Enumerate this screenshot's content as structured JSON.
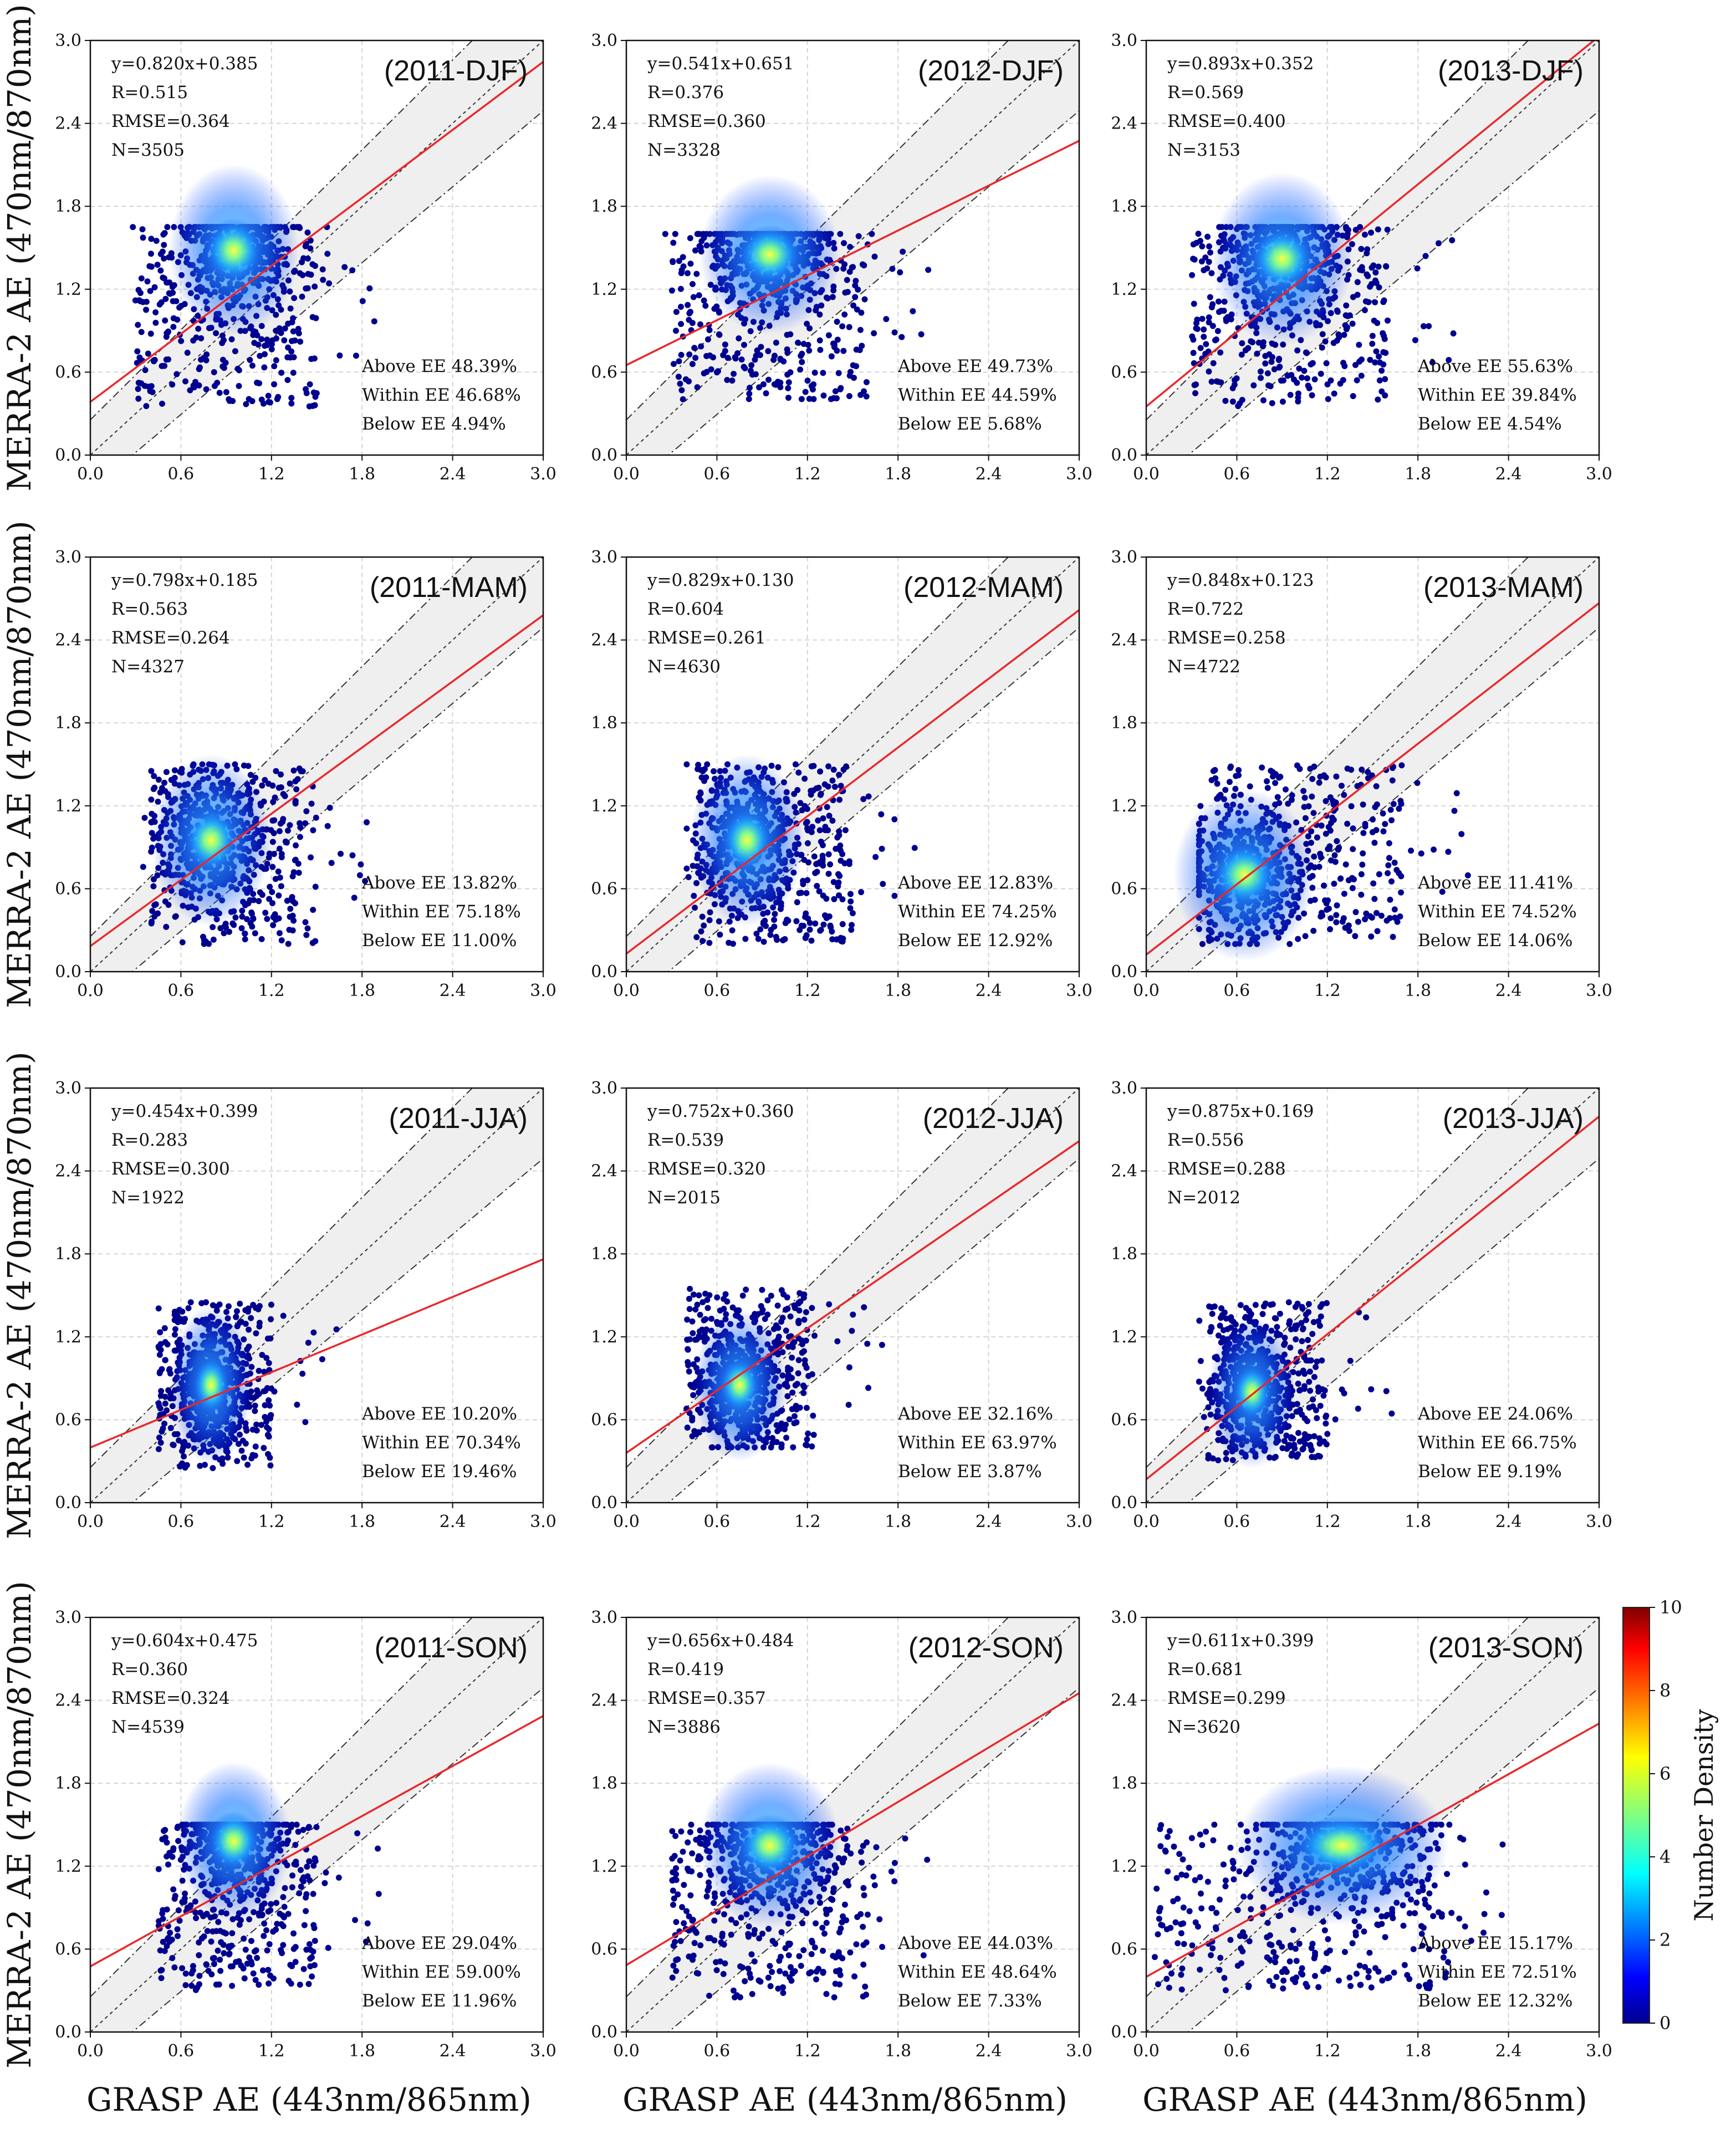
{
  "figure": {
    "ylabel": "MERRA-2 AE (470nm/870nm)",
    "xlabel": "GRASP AE (443nm/865nm)"
  },
  "colorbar": {
    "label": "Number Density",
    "ticks": [
      "0",
      "2",
      "4",
      "6",
      "8",
      "10"
    ],
    "range": [
      0,
      10
    ],
    "colors": [
      "#00008f",
      "#0000ff",
      "#0080ff",
      "#00ffff",
      "#80ff80",
      "#ffff00",
      "#ff8000",
      "#ff0000",
      "#800000"
    ]
  },
  "colors": {
    "regression_line": "#e8282c",
    "ee_band": "#efefef",
    "ee_lines": "#333333",
    "grid": "#d4d4d4",
    "points_low": "#00008f",
    "points_mid": "#1a6bff",
    "points_high": "#ffff00"
  },
  "chart_data": [
    {
      "type": "scatter",
      "title": "(2011-DJF)",
      "xlim": [
        0,
        3
      ],
      "ylim": [
        0,
        3
      ],
      "xticks": [
        "0.0",
        "0.6",
        "1.2",
        "1.8",
        "2.4",
        "3.0"
      ],
      "yticks": [
        "0.0",
        "0.6",
        "1.2",
        "1.8",
        "2.4",
        "3.0"
      ],
      "fit": {
        "slope": 0.82,
        "intercept": 0.385
      },
      "stats": [
        "y=0.820x+0.385",
        "R=0.515",
        "RMSE=0.364",
        "N=3505"
      ],
      "ee": [
        "Above EE 48.39%",
        "Within EE 46.68%",
        "Below EE 4.94%"
      ],
      "cloud": {
        "x_range": [
          0.3,
          1.5
        ],
        "y_range": [
          0.35,
          1.65
        ],
        "peak": [
          0.95,
          1.48
        ]
      }
    },
    {
      "type": "scatter",
      "title": "(2012-DJF)",
      "xlim": [
        0,
        3
      ],
      "ylim": [
        0,
        3
      ],
      "xticks": [
        "0.0",
        "0.6",
        "1.2",
        "1.8",
        "2.4",
        "3.0"
      ],
      "yticks": [
        "0.0",
        "0.6",
        "1.2",
        "1.8",
        "2.4",
        "3.0"
      ],
      "fit": {
        "slope": 0.541,
        "intercept": 0.651
      },
      "stats": [
        "y=0.541x+0.651",
        "R=0.376",
        "RMSE=0.360",
        "N=3328"
      ],
      "ee": [
        "Above EE 49.73%",
        "Within EE 44.59%",
        "Below EE 5.68%"
      ],
      "cloud": {
        "x_range": [
          0.3,
          1.6
        ],
        "y_range": [
          0.4,
          1.6
        ],
        "peak": [
          0.95,
          1.45
        ]
      }
    },
    {
      "type": "scatter",
      "title": "(2013-DJF)",
      "xlim": [
        0,
        3
      ],
      "ylim": [
        0,
        3
      ],
      "xticks": [
        "0.0",
        "0.6",
        "1.2",
        "1.8",
        "2.4",
        "3.0"
      ],
      "yticks": [
        "0.0",
        "0.6",
        "1.2",
        "1.8",
        "2.4",
        "3.0"
      ],
      "fit": {
        "slope": 0.893,
        "intercept": 0.352
      },
      "stats": [
        "y=0.893x+0.352",
        "R=0.569",
        "RMSE=0.400",
        "N=3153"
      ],
      "ee": [
        "Above EE 55.63%",
        "Within EE 39.84%",
        "Below EE 4.54%"
      ],
      "cloud": {
        "x_range": [
          0.3,
          1.6
        ],
        "y_range": [
          0.35,
          1.65
        ],
        "peak": [
          0.9,
          1.42
        ]
      }
    },
    {
      "type": "scatter",
      "title": "(2011-MAM)",
      "xlim": [
        0,
        3
      ],
      "ylim": [
        0,
        3
      ],
      "xticks": [
        "0.0",
        "0.6",
        "1.2",
        "1.8",
        "2.4",
        "3.0"
      ],
      "yticks": [
        "0.0",
        "0.6",
        "1.2",
        "1.8",
        "2.4",
        "3.0"
      ],
      "fit": {
        "slope": 0.798,
        "intercept": 0.185
      },
      "stats": [
        "y=0.798x+0.185",
        "R=0.563",
        "RMSE=0.264",
        "N=4327"
      ],
      "ee": [
        "Above EE 13.82%",
        "Within EE 75.18%",
        "Below EE 11.00%"
      ],
      "cloud": {
        "x_range": [
          0.4,
          1.5
        ],
        "y_range": [
          0.2,
          1.5
        ],
        "peak": [
          0.8,
          0.95
        ]
      }
    },
    {
      "type": "scatter",
      "title": "(2012-MAM)",
      "xlim": [
        0,
        3
      ],
      "ylim": [
        0,
        3
      ],
      "xticks": [
        "0.0",
        "0.6",
        "1.2",
        "1.8",
        "2.4",
        "3.0"
      ],
      "yticks": [
        "0.0",
        "0.6",
        "1.2",
        "1.8",
        "2.4",
        "3.0"
      ],
      "fit": {
        "slope": 0.829,
        "intercept": 0.13
      },
      "stats": [
        "y=0.829x+0.130",
        "R=0.604",
        "RMSE=0.261",
        "N=4630"
      ],
      "ee": [
        "Above EE 12.83%",
        "Within EE 74.25%",
        "Below EE 12.92%"
      ],
      "cloud": {
        "x_range": [
          0.45,
          1.5
        ],
        "y_range": [
          0.2,
          1.5
        ],
        "peak": [
          0.8,
          0.95
        ]
      }
    },
    {
      "type": "scatter",
      "title": "(2013-MAM)",
      "xlim": [
        0,
        3
      ],
      "ylim": [
        0,
        3
      ],
      "xticks": [
        "0.0",
        "0.6",
        "1.2",
        "1.8",
        "2.4",
        "3.0"
      ],
      "yticks": [
        "0.0",
        "0.6",
        "1.2",
        "1.8",
        "2.4",
        "3.0"
      ],
      "fit": {
        "slope": 0.848,
        "intercept": 0.123
      },
      "stats": [
        "y=0.848x+0.123",
        "R=0.722",
        "RMSE=0.258",
        "N=4722"
      ],
      "ee": [
        "Above EE 11.41%",
        "Within EE 74.52%",
        "Below EE 14.06%"
      ],
      "cloud": {
        "x_range": [
          0.4,
          1.7
        ],
        "y_range": [
          0.2,
          1.5
        ],
        "peak": [
          0.65,
          0.7
        ]
      }
    },
    {
      "type": "scatter",
      "title": "(2011-JJA)",
      "xlim": [
        0,
        3
      ],
      "ylim": [
        0,
        3
      ],
      "xticks": [
        "0.0",
        "0.6",
        "1.2",
        "1.8",
        "2.4",
        "3.0"
      ],
      "yticks": [
        "0.0",
        "0.6",
        "1.2",
        "1.8",
        "2.4",
        "3.0"
      ],
      "fit": {
        "slope": 0.454,
        "intercept": 0.399
      },
      "stats": [
        "y=0.454x+0.399",
        "R=0.283",
        "RMSE=0.300",
        "N=1922"
      ],
      "ee": [
        "Above EE 10.20%",
        "Within EE 70.34%",
        "Below EE 19.46%"
      ],
      "cloud": {
        "x_range": [
          0.45,
          1.2
        ],
        "y_range": [
          0.25,
          1.45
        ],
        "peak": [
          0.8,
          0.85
        ]
      }
    },
    {
      "type": "scatter",
      "title": "(2012-JJA)",
      "xlim": [
        0,
        3
      ],
      "ylim": [
        0,
        3
      ],
      "xticks": [
        "0.0",
        "0.6",
        "1.2",
        "1.8",
        "2.4",
        "3.0"
      ],
      "yticks": [
        "0.0",
        "0.6",
        "1.2",
        "1.8",
        "2.4",
        "3.0"
      ],
      "fit": {
        "slope": 0.752,
        "intercept": 0.36
      },
      "stats": [
        "y=0.752x+0.360",
        "R=0.539",
        "RMSE=0.320",
        "N=2015"
      ],
      "ee": [
        "Above EE 32.16%",
        "Within EE 63.97%",
        "Below EE 3.87%"
      ],
      "cloud": {
        "x_range": [
          0.4,
          1.25
        ],
        "y_range": [
          0.4,
          1.55
        ],
        "peak": [
          0.75,
          0.85
        ]
      }
    },
    {
      "type": "scatter",
      "title": "(2013-JJA)",
      "xlim": [
        0,
        3
      ],
      "ylim": [
        0,
        3
      ],
      "xticks": [
        "0.0",
        "0.6",
        "1.2",
        "1.8",
        "2.4",
        "3.0"
      ],
      "yticks": [
        "0.0",
        "0.6",
        "1.2",
        "1.8",
        "2.4",
        "3.0"
      ],
      "fit": {
        "slope": 0.875,
        "intercept": 0.169
      },
      "stats": [
        "y=0.875x+0.169",
        "R=0.556",
        "RMSE=0.288",
        "N=2012"
      ],
      "ee": [
        "Above EE 24.06%",
        "Within EE 66.75%",
        "Below EE 9.19%"
      ],
      "cloud": {
        "x_range": [
          0.4,
          1.2
        ],
        "y_range": [
          0.3,
          1.45
        ],
        "peak": [
          0.7,
          0.8
        ]
      }
    },
    {
      "type": "scatter",
      "title": "(2011-SON)",
      "xlim": [
        0,
        3
      ],
      "ylim": [
        0,
        3
      ],
      "xticks": [
        "0.0",
        "0.6",
        "1.2",
        "1.8",
        "2.4",
        "3.0"
      ],
      "yticks": [
        "0.0",
        "0.6",
        "1.2",
        "1.8",
        "2.4",
        "3.0"
      ],
      "fit": {
        "slope": 0.604,
        "intercept": 0.475
      },
      "stats": [
        "y=0.604x+0.475",
        "R=0.360",
        "RMSE=0.324",
        "N=4539"
      ],
      "ee": [
        "Above EE 29.04%",
        "Within EE 59.00%",
        "Below EE 11.96%"
      ],
      "cloud": {
        "x_range": [
          0.45,
          1.5
        ],
        "y_range": [
          0.3,
          1.5
        ],
        "peak": [
          0.95,
          1.38
        ]
      }
    },
    {
      "type": "scatter",
      "title": "(2012-SON)",
      "xlim": [
        0,
        3
      ],
      "ylim": [
        0,
        3
      ],
      "xticks": [
        "0.0",
        "0.6",
        "1.2",
        "1.8",
        "2.4",
        "3.0"
      ],
      "yticks": [
        "0.0",
        "0.6",
        "1.2",
        "1.8",
        "2.4",
        "3.0"
      ],
      "fit": {
        "slope": 0.656,
        "intercept": 0.484
      },
      "stats": [
        "y=0.656x+0.484",
        "R=0.419",
        "RMSE=0.357",
        "N=3886"
      ],
      "ee": [
        "Above EE 44.03%",
        "Within EE 48.64%",
        "Below EE 7.33%"
      ],
      "cloud": {
        "x_range": [
          0.3,
          1.6
        ],
        "y_range": [
          0.25,
          1.5
        ],
        "peak": [
          0.95,
          1.35
        ]
      }
    },
    {
      "type": "scatter",
      "title": "(2013-SON)",
      "xlim": [
        0,
        3
      ],
      "ylim": [
        0,
        3
      ],
      "xticks": [
        "0.0",
        "0.6",
        "1.2",
        "1.8",
        "2.4",
        "3.0"
      ],
      "yticks": [
        "0.0",
        "0.6",
        "1.2",
        "1.8",
        "2.4",
        "3.0"
      ],
      "fit": {
        "slope": 0.611,
        "intercept": 0.399
      },
      "stats": [
        "y=0.611x+0.399",
        "R=0.681",
        "RMSE=0.299",
        "N=3620"
      ],
      "ee": [
        "Above EE 15.17%",
        "Within EE 72.51%",
        "Below EE 12.32%"
      ],
      "cloud": {
        "x_range": [
          0.05,
          2.0
        ],
        "y_range": [
          0.3,
          1.5
        ],
        "peak": [
          1.3,
          1.35
        ]
      }
    }
  ]
}
